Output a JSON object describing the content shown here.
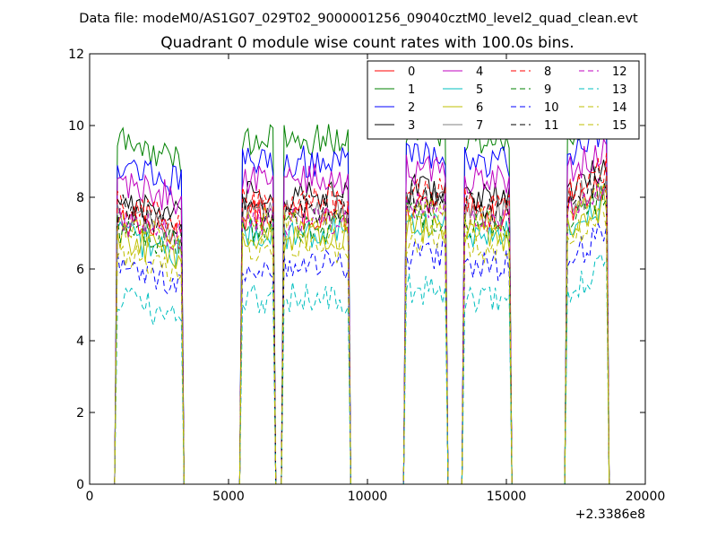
{
  "figure": {
    "suptitle": "Data file: modeM0/AS1G07_029T02_9000001256_09040cztM0_level2_quad_clean.evt"
  },
  "chart_data": {
    "type": "line",
    "title": "Quadrant 0 module wise count rates with 100.0s bins.",
    "xlabel": "",
    "ylabel": "",
    "x_offset_label": "+2.3386e8",
    "xlim": [
      0,
      20000
    ],
    "ylim": [
      0,
      12
    ],
    "x_ticks": [
      0,
      5000,
      10000,
      15000,
      20000
    ],
    "y_ticks": [
      0,
      2,
      4,
      6,
      8,
      10,
      12
    ],
    "grid": false,
    "legend": {
      "placement": "top-right",
      "columns": 4
    },
    "segments": [
      {
        "start": 1000,
        "end": 3300
      },
      {
        "start": 5500,
        "end": 6600
      },
      {
        "start": 7000,
        "end": 9300
      },
      {
        "start": 11400,
        "end": 12800
      },
      {
        "start": 13500,
        "end": 15100
      },
      {
        "start": 17200,
        "end": 18600
      }
    ],
    "bin_seconds": 100,
    "series": [
      {
        "name": "0",
        "color": "#ff0000",
        "dash": "solid",
        "level": 7.5
      },
      {
        "name": "1",
        "color": "#008000",
        "dash": "solid",
        "level": 9.6
      },
      {
        "name": "2",
        "color": "#0000ff",
        "dash": "solid",
        "level": 9.0
      },
      {
        "name": "3",
        "color": "#000000",
        "dash": "solid",
        "level": 8.0
      },
      {
        "name": "4",
        "color": "#bf00bf",
        "dash": "solid",
        "level": 8.5
      },
      {
        "name": "5",
        "color": "#00bfbf",
        "dash": "solid",
        "level": 7.0
      },
      {
        "name": "6",
        "color": "#bfbf00",
        "dash": "solid",
        "level": 6.9
      },
      {
        "name": "7",
        "color": "#808080",
        "dash": "solid",
        "level": 7.6
      },
      {
        "name": "8",
        "color": "#ff0000",
        "dash": "dashed",
        "level": 7.9
      },
      {
        "name": "9",
        "color": "#008000",
        "dash": "dashed",
        "level": 7.2
      },
      {
        "name": "10",
        "color": "#0000ff",
        "dash": "dashed",
        "level": 6.1
      },
      {
        "name": "11",
        "color": "#000000",
        "dash": "dashed",
        "level": 7.7
      },
      {
        "name": "12",
        "color": "#bf00bf",
        "dash": "dashed",
        "level": 7.4
      },
      {
        "name": "13",
        "color": "#00bfbf",
        "dash": "dashed",
        "level": 5.2
      },
      {
        "name": "14",
        "color": "#bfbf00",
        "dash": "dashed",
        "level": 6.6
      },
      {
        "name": "15",
        "color": "#bfbf00",
        "dash": "dashed",
        "level": 7.3
      }
    ]
  }
}
